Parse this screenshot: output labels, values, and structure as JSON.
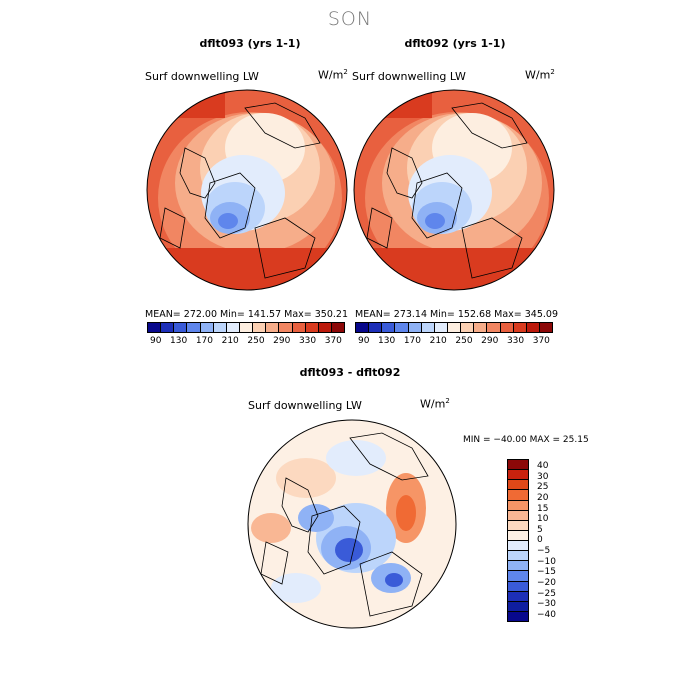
{
  "figure": {
    "season": "SON"
  },
  "panels": [
    {
      "title": "dflt093 (yrs 1-1)",
      "variable": "Surf downwelling LW",
      "unit": "W/m",
      "unit_exp": "2",
      "stats": "MEAN= 272.00   Min= 141.57   Max= 350.21"
    },
    {
      "title": "dflt092 (yrs 1-1)",
      "variable": "Surf downwelling LW",
      "unit": "W/m",
      "unit_exp": "2",
      "stats": "MEAN= 273.14   Min= 152.68   Max= 345.09"
    }
  ],
  "abs_colorbar": {
    "labels": [
      "90",
      "130",
      "170",
      "210",
      "250",
      "290",
      "330",
      "370"
    ],
    "colors": [
      "#08088c",
      "#1d2fb8",
      "#3a5bd8",
      "#5f86ec",
      "#8fb2f5",
      "#bcd5fb",
      "#e2ecfc",
      "#fdeee0",
      "#fbd0b3",
      "#f6ad8a",
      "#f18662",
      "#e8603f",
      "#d93b1f",
      "#bc1a0c",
      "#8c0808"
    ]
  },
  "diff_panel": {
    "title": "dflt093 - dflt092",
    "variable": "Surf downwelling LW",
    "unit": "W/m",
    "unit_exp": "2",
    "minmax": "MIN = −40.00 MAX =  25.15"
  },
  "diff_colorbar": {
    "labels": [
      "40",
      "30",
      "25",
      "20",
      "15",
      "10",
      "5",
      "0",
      "−5",
      "−10",
      "−15",
      "−20",
      "−25",
      "−30",
      "−40"
    ],
    "colors": [
      "#8c0808",
      "#c8220e",
      "#e04818",
      "#f06a34",
      "#f69566",
      "#f9b794",
      "#fcd9c0",
      "#fdf0e4",
      "#e2ecfc",
      "#bcd5fb",
      "#8fb2f5",
      "#5f86ec",
      "#3a5bd8",
      "#1d2fb8",
      "#0f1ea0",
      "#08088c"
    ]
  }
}
